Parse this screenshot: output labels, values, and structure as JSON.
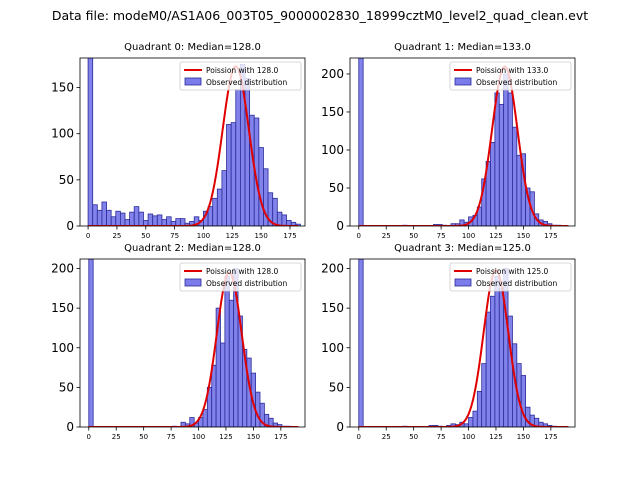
{
  "figure": {
    "title": "Data file: modeM0/AS1A06_003T05_9000002830_18999cztM0_level2_quad_clean.evt",
    "colors": {
      "bar_fill": "#7b7bea",
      "bar_edge": "#2b2b9a",
      "curve": "#e00000"
    }
  },
  "chart_data": [
    {
      "type": "bar+line",
      "title": "Quadrant 0: Median=128.0",
      "bin_width": 4,
      "xlim": [
        -7,
        188
      ],
      "ylim": [
        0,
        182
      ],
      "xticks": [
        0,
        25,
        50,
        75,
        100,
        125,
        150,
        175
      ],
      "yticks": [
        0,
        50,
        100,
        150
      ],
      "legend": {
        "position": "top-right",
        "line_label": "Poission with 128.0",
        "bar_label": "Observed distribution"
      },
      "poisson_mean": 128.0,
      "poisson_peak": 173,
      "bins": [
        [
          0,
          190
        ],
        [
          4,
          23
        ],
        [
          8,
          17
        ],
        [
          12,
          26
        ],
        [
          16,
          17
        ],
        [
          20,
          10
        ],
        [
          24,
          16
        ],
        [
          28,
          14
        ],
        [
          32,
          7
        ],
        [
          36,
          15
        ],
        [
          40,
          21
        ],
        [
          44,
          15
        ],
        [
          48,
          6
        ],
        [
          52,
          13
        ],
        [
          56,
          11
        ],
        [
          60,
          12
        ],
        [
          64,
          7
        ],
        [
          68,
          10
        ],
        [
          72,
          5
        ],
        [
          76,
          8
        ],
        [
          80,
          8
        ],
        [
          84,
          3
        ],
        [
          88,
          5
        ],
        [
          92,
          10
        ],
        [
          96,
          6
        ],
        [
          100,
          16
        ],
        [
          104,
          21
        ],
        [
          108,
          30
        ],
        [
          112,
          40
        ],
        [
          116,
          60
        ],
        [
          120,
          110
        ],
        [
          124,
          112
        ],
        [
          128,
          148
        ],
        [
          132,
          175
        ],
        [
          136,
          160
        ],
        [
          140,
          120
        ],
        [
          144,
          117
        ],
        [
          148,
          85
        ],
        [
          152,
          62
        ],
        [
          156,
          36
        ],
        [
          160,
          30
        ],
        [
          164,
          15
        ],
        [
          168,
          12
        ],
        [
          172,
          6
        ],
        [
          176,
          4
        ],
        [
          180,
          2
        ]
      ]
    },
    {
      "type": "bar+line",
      "title": "Quadrant 1: Median=133.0",
      "bin_width": 4,
      "xlim": [
        -8,
        197
      ],
      "ylim": [
        0,
        221
      ],
      "xticks": [
        0,
        25,
        50,
        75,
        100,
        125,
        150,
        175
      ],
      "yticks": [
        0,
        50,
        100,
        150,
        200
      ],
      "legend": {
        "position": "top-right",
        "line_label": "Poission with 133.0",
        "bar_label": "Observed distribution"
      },
      "poisson_mean": 133.0,
      "poisson_peak": 210,
      "bins": [
        [
          0,
          221
        ],
        [
          40,
          1
        ],
        [
          68,
          2
        ],
        [
          72,
          2
        ],
        [
          76,
          1
        ],
        [
          84,
          3
        ],
        [
          88,
          3
        ],
        [
          92,
          8
        ],
        [
          96,
          5
        ],
        [
          100,
          12
        ],
        [
          104,
          14
        ],
        [
          108,
          25
        ],
        [
          112,
          62
        ],
        [
          116,
          85
        ],
        [
          120,
          110
        ],
        [
          124,
          175
        ],
        [
          128,
          160
        ],
        [
          132,
          200
        ],
        [
          136,
          175
        ],
        [
          140,
          130
        ],
        [
          144,
          93
        ],
        [
          148,
          95
        ],
        [
          152,
          50
        ],
        [
          156,
          45
        ],
        [
          160,
          16
        ],
        [
          164,
          8
        ],
        [
          168,
          6
        ],
        [
          172,
          3
        ],
        [
          176,
          1
        ],
        [
          180,
          1
        ]
      ]
    },
    {
      "type": "bar+line",
      "title": "Quadrant 2: Median=128.0",
      "bin_width": 4,
      "xlim": [
        -8,
        197
      ],
      "ylim": [
        0,
        212
      ],
      "xticks": [
        0,
        25,
        50,
        75,
        100,
        125,
        150,
        175
      ],
      "yticks": [
        0,
        50,
        100,
        150,
        200
      ],
      "legend": {
        "position": "top-right",
        "line_label": "Poission with 128.0",
        "bar_label": "Observed distribution"
      },
      "poisson_mean": 128.0,
      "poisson_peak": 195,
      "bins": [
        [
          0,
          212
        ],
        [
          76,
          1
        ],
        [
          84,
          6
        ],
        [
          88,
          4
        ],
        [
          92,
          12
        ],
        [
          96,
          5
        ],
        [
          100,
          12
        ],
        [
          104,
          22
        ],
        [
          108,
          50
        ],
        [
          112,
          78
        ],
        [
          116,
          150
        ],
        [
          120,
          106
        ],
        [
          124,
          190
        ],
        [
          128,
          160
        ],
        [
          132,
          200
        ],
        [
          136,
          140
        ],
        [
          140,
          98
        ],
        [
          144,
          87
        ],
        [
          148,
          68
        ],
        [
          152,
          44
        ],
        [
          156,
          30
        ],
        [
          160,
          16
        ],
        [
          164,
          11
        ],
        [
          168,
          5
        ],
        [
          172,
          3
        ],
        [
          176,
          1
        ],
        [
          180,
          1
        ]
      ]
    },
    {
      "type": "bar+line",
      "title": "Quadrant 3: Median=125.0",
      "bin_width": 4,
      "xlim": [
        -8,
        197
      ],
      "ylim": [
        0,
        212
      ],
      "xticks": [
        0,
        25,
        50,
        75,
        100,
        125,
        150,
        175
      ],
      "yticks": [
        0,
        50,
        100,
        150,
        200
      ],
      "legend": {
        "position": "top-right",
        "line_label": "Poission with 125.0",
        "bar_label": "Observed distribution"
      },
      "poisson_mean": 125.0,
      "poisson_peak": 198,
      "bins": [
        [
          0,
          212
        ],
        [
          40,
          1
        ],
        [
          64,
          2
        ],
        [
          68,
          2
        ],
        [
          72,
          1
        ],
        [
          80,
          2
        ],
        [
          84,
          4
        ],
        [
          88,
          3
        ],
        [
          92,
          6
        ],
        [
          96,
          4
        ],
        [
          100,
          12
        ],
        [
          104,
          20
        ],
        [
          108,
          45
        ],
        [
          112,
          80
        ],
        [
          116,
          145
        ],
        [
          120,
          165
        ],
        [
          124,
          190
        ],
        [
          128,
          175
        ],
        [
          132,
          200
        ],
        [
          136,
          140
        ],
        [
          140,
          105
        ],
        [
          144,
          80
        ],
        [
          148,
          65
        ],
        [
          152,
          25
        ],
        [
          156,
          15
        ],
        [
          160,
          11
        ],
        [
          164,
          6
        ],
        [
          168,
          4
        ],
        [
          172,
          2
        ],
        [
          176,
          1
        ]
      ]
    }
  ]
}
